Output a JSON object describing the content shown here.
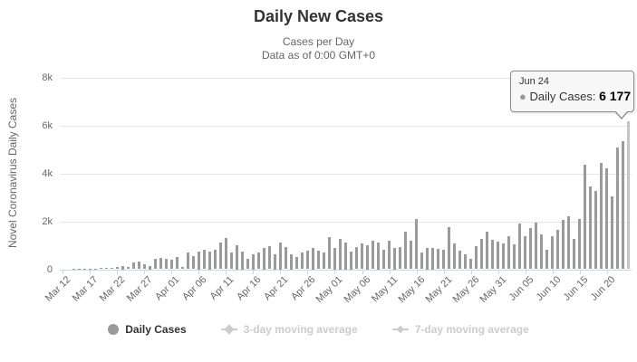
{
  "header": {
    "title": "Daily New Cases",
    "subtitle_line1": "Cases per Day",
    "subtitle_line2": "Data as of 0:00 GMT+0"
  },
  "y_axis_title": "Novel Coronavirus Daily Cases",
  "tooltip": {
    "date": "Jun 24",
    "bullet": "●",
    "series_label": "Daily Cases:",
    "value": "6 177"
  },
  "legend": {
    "daily_cases_label": "Daily Cases",
    "avg3_label": "3-day moving average",
    "avg7_label": "7-day moving average"
  },
  "colors": {
    "bar": "#9a9a9a",
    "bar_highlight": "#c5c5c5",
    "gridline": "#e6e6e6",
    "axis_line": "#ccd6eb",
    "label_text": "#666666",
    "title_text": "#333333",
    "legend_disabled": "#cccccc"
  },
  "chart_data": {
    "type": "bar",
    "title": "Daily New Cases",
    "xlabel": "",
    "ylabel": "Novel Coronavirus Daily Cases",
    "ylim": [
      0,
      8000
    ],
    "grid": true,
    "legend_position": "bottom",
    "y_ticks": [
      0,
      2000,
      4000,
      6000,
      8000
    ],
    "y_tick_labels": [
      "0",
      "2k",
      "4k",
      "6k",
      "8k"
    ],
    "x_tick_every": 5,
    "highlight_index": 104,
    "highlight_tooltip": {
      "x": "Jun 24",
      "y": 6177
    },
    "x": [
      "Mar 12",
      "Mar 13",
      "Mar 14",
      "Mar 15",
      "Mar 16",
      "Mar 17",
      "Mar 18",
      "Mar 19",
      "Mar 20",
      "Mar 21",
      "Mar 22",
      "Mar 23",
      "Mar 24",
      "Mar 25",
      "Mar 26",
      "Mar 27",
      "Mar 28",
      "Mar 29",
      "Mar 30",
      "Mar 31",
      "Apr 01",
      "Apr 02",
      "Apr 03",
      "Apr 04",
      "Apr 05",
      "Apr 06",
      "Apr 07",
      "Apr 08",
      "Apr 09",
      "Apr 10",
      "Apr 11",
      "Apr 12",
      "Apr 13",
      "Apr 14",
      "Apr 15",
      "Apr 16",
      "Apr 17",
      "Apr 18",
      "Apr 19",
      "Apr 20",
      "Apr 21",
      "Apr 22",
      "Apr 23",
      "Apr 24",
      "Apr 25",
      "Apr 26",
      "Apr 27",
      "Apr 28",
      "Apr 29",
      "Apr 30",
      "May 01",
      "May 02",
      "May 03",
      "May 04",
      "May 05",
      "May 06",
      "May 07",
      "May 08",
      "May 09",
      "May 10",
      "May 11",
      "May 12",
      "May 13",
      "May 14",
      "May 15",
      "May 16",
      "May 17",
      "May 18",
      "May 19",
      "May 20",
      "May 21",
      "May 22",
      "May 23",
      "May 24",
      "May 25",
      "May 26",
      "May 27",
      "May 28",
      "May 29",
      "May 30",
      "May 31",
      "Jun 01",
      "Jun 02",
      "Jun 03",
      "Jun 04",
      "Jun 05",
      "Jun 06",
      "Jun 07",
      "Jun 08",
      "Jun 09",
      "Jun 10",
      "Jun 11",
      "Jun 12",
      "Jun 13",
      "Jun 14",
      "Jun 15",
      "Jun 16",
      "Jun 17",
      "Jun 18",
      "Jun 19",
      "Jun 20",
      "Jun 21",
      "Jun 22",
      "Jun 23",
      "Jun 24"
    ],
    "values": [
      0,
      0,
      5,
      10,
      5,
      10,
      15,
      60,
      75,
      60,
      100,
      125,
      100,
      270,
      310,
      225,
      125,
      440,
      475,
      440,
      400,
      525,
      100,
      690,
      560,
      750,
      815,
      750,
      800,
      1100,
      1310,
      690,
      1000,
      750,
      440,
      625,
      690,
      875,
      975,
      625,
      1125,
      940,
      625,
      525,
      690,
      775,
      875,
      775,
      690,
      1350,
      875,
      1250,
      1125,
      750,
      940,
      1060,
      1000,
      1190,
      1125,
      810,
      1190,
      875,
      940,
      1560,
      1190,
      2090,
      690,
      875,
      875,
      850,
      810,
      1770,
      1075,
      785,
      630,
      440,
      950,
      1265,
      1580,
      1240,
      1165,
      1075,
      1390,
      1040,
      1900,
      1365,
      1710,
      1960,
      1455,
      820,
      1390,
      1645,
      2060,
      2190,
      1270,
      2100,
      4365,
      3450,
      3280,
      4440,
      4190,
      3050,
      5080,
      5330,
      6177
    ],
    "series": [
      {
        "name": "Daily Cases",
        "visible": true
      },
      {
        "name": "3-day moving average",
        "visible": false
      },
      {
        "name": "7-day moving average",
        "visible": false
      }
    ]
  }
}
